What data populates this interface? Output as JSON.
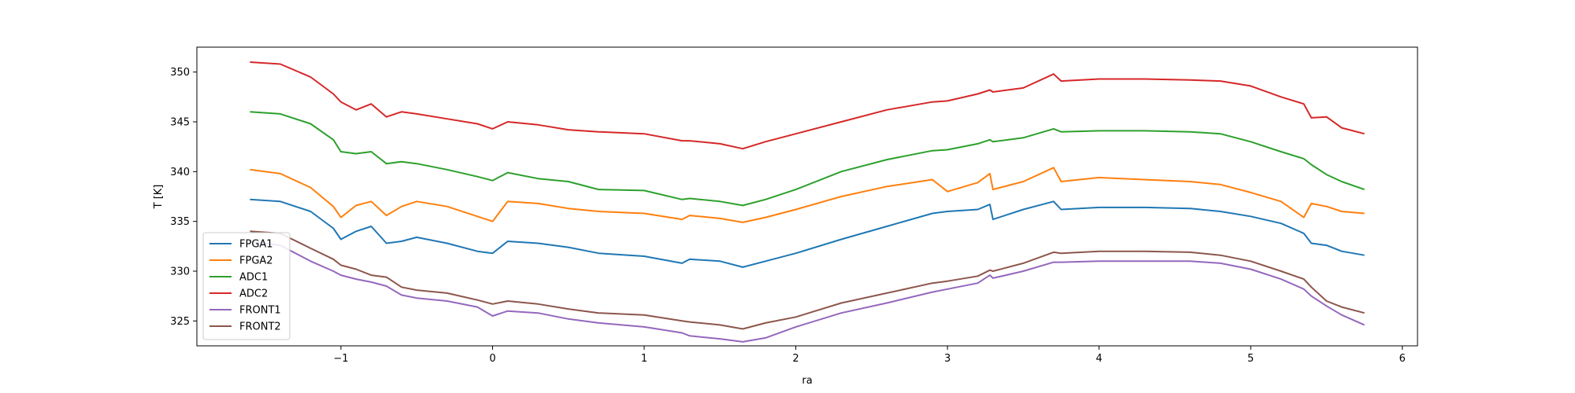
{
  "chart_data": {
    "type": "line",
    "title": "",
    "xlabel": "ra",
    "ylabel": "T [K]",
    "xlim": [
      -1.95,
      6.1
    ],
    "ylim": [
      322.5,
      352.5
    ],
    "xticks": [
      -1,
      0,
      1,
      2,
      3,
      4,
      5,
      6
    ],
    "xtick_labels": [
      "−1",
      "0",
      "1",
      "2",
      "3",
      "4",
      "5",
      "6"
    ],
    "yticks": [
      325,
      330,
      335,
      340,
      345,
      350
    ],
    "ytick_labels": [
      "325",
      "330",
      "335",
      "340",
      "345",
      "350"
    ],
    "grid": false,
    "legend_position": "lower-left",
    "series": [
      {
        "name": "FPGA1",
        "color": "#1f77b4",
        "x": [
          -1.6,
          -1.4,
          -1.2,
          -1.05,
          -1.0,
          -0.9,
          -0.8,
          -0.7,
          -0.6,
          -0.5,
          -0.3,
          -0.1,
          0.0,
          0.1,
          0.3,
          0.5,
          0.7,
          1.0,
          1.25,
          1.3,
          1.5,
          1.65,
          1.8,
          2.0,
          2.3,
          2.6,
          2.9,
          3.0,
          3.2,
          3.28,
          3.3,
          3.5,
          3.7,
          3.75,
          4.0,
          4.3,
          4.6,
          4.8,
          5.0,
          5.2,
          5.35,
          5.4,
          5.5,
          5.6,
          5.75
        ],
        "y": [
          337.2,
          337.0,
          336.0,
          334.3,
          333.2,
          334.0,
          334.5,
          332.8,
          333.0,
          333.4,
          332.8,
          332.0,
          331.8,
          333.0,
          332.8,
          332.4,
          331.8,
          331.5,
          330.8,
          331.2,
          331.0,
          330.4,
          331.0,
          331.8,
          333.2,
          334.5,
          335.8,
          336.0,
          336.2,
          336.7,
          335.2,
          336.2,
          337.0,
          336.2,
          336.4,
          336.4,
          336.3,
          336.0,
          335.5,
          334.8,
          333.8,
          332.8,
          332.6,
          332.0,
          331.6
        ]
      },
      {
        "name": "FPGA2",
        "color": "#ff7f0e",
        "x": [
          -1.6,
          -1.4,
          -1.2,
          -1.05,
          -1.0,
          -0.9,
          -0.8,
          -0.7,
          -0.6,
          -0.5,
          -0.3,
          -0.1,
          0.0,
          0.1,
          0.3,
          0.5,
          0.7,
          1.0,
          1.25,
          1.3,
          1.5,
          1.65,
          1.8,
          2.0,
          2.3,
          2.6,
          2.9,
          3.0,
          3.2,
          3.28,
          3.3,
          3.5,
          3.7,
          3.75,
          4.0,
          4.3,
          4.6,
          4.8,
          5.0,
          5.2,
          5.35,
          5.4,
          5.5,
          5.6,
          5.75
        ],
        "y": [
          340.2,
          339.8,
          338.4,
          336.5,
          335.4,
          336.6,
          337.0,
          335.6,
          336.5,
          337.0,
          336.5,
          335.5,
          335.0,
          337.0,
          336.8,
          336.3,
          336.0,
          335.8,
          335.2,
          335.6,
          335.3,
          334.9,
          335.4,
          336.2,
          337.5,
          338.5,
          339.2,
          338.0,
          338.9,
          339.8,
          338.2,
          339.0,
          340.4,
          339.0,
          339.4,
          339.2,
          339.0,
          338.7,
          337.9,
          337.0,
          335.4,
          336.8,
          336.5,
          336.0,
          335.8
        ]
      },
      {
        "name": "ADC1",
        "color": "#2ca02c",
        "x": [
          -1.6,
          -1.4,
          -1.2,
          -1.05,
          -1.0,
          -0.9,
          -0.8,
          -0.7,
          -0.6,
          -0.5,
          -0.3,
          -0.1,
          0.0,
          0.1,
          0.3,
          0.5,
          0.7,
          1.0,
          1.25,
          1.3,
          1.5,
          1.65,
          1.8,
          2.0,
          2.3,
          2.6,
          2.9,
          3.0,
          3.2,
          3.28,
          3.3,
          3.5,
          3.7,
          3.75,
          4.0,
          4.3,
          4.6,
          4.8,
          5.0,
          5.2,
          5.35,
          5.4,
          5.5,
          5.6,
          5.75
        ],
        "y": [
          346.0,
          345.8,
          344.8,
          343.2,
          342.0,
          341.8,
          342.0,
          340.8,
          341.0,
          340.8,
          340.2,
          339.5,
          339.1,
          339.9,
          339.3,
          339.0,
          338.2,
          338.1,
          337.2,
          337.3,
          337.0,
          336.6,
          337.2,
          338.2,
          340.0,
          341.2,
          342.1,
          342.2,
          342.8,
          343.2,
          343.0,
          343.4,
          344.3,
          344.0,
          344.1,
          344.1,
          344.0,
          343.8,
          343.0,
          342.0,
          341.3,
          340.7,
          339.7,
          339.0,
          338.2
        ]
      },
      {
        "name": "ADC2",
        "color": "#d62728",
        "x": [
          -1.6,
          -1.4,
          -1.2,
          -1.05,
          -1.0,
          -0.9,
          -0.8,
          -0.7,
          -0.6,
          -0.5,
          -0.3,
          -0.1,
          0.0,
          0.1,
          0.3,
          0.5,
          0.7,
          1.0,
          1.25,
          1.3,
          1.5,
          1.65,
          1.8,
          2.0,
          2.3,
          2.6,
          2.9,
          3.0,
          3.2,
          3.28,
          3.3,
          3.5,
          3.7,
          3.75,
          4.0,
          4.3,
          4.6,
          4.8,
          5.0,
          5.2,
          5.35,
          5.4,
          5.5,
          5.6,
          5.75
        ],
        "y": [
          351.0,
          350.8,
          349.5,
          347.8,
          347.0,
          346.2,
          346.8,
          345.5,
          346.0,
          345.8,
          345.3,
          344.8,
          344.3,
          345.0,
          344.7,
          344.2,
          344.0,
          343.8,
          343.1,
          343.1,
          342.8,
          342.3,
          343.0,
          343.8,
          345.0,
          346.2,
          347.0,
          347.1,
          347.8,
          348.2,
          348.0,
          348.4,
          349.8,
          349.1,
          349.3,
          349.3,
          349.2,
          349.1,
          348.6,
          347.5,
          346.8,
          345.4,
          345.5,
          344.4,
          343.8
        ]
      },
      {
        "name": "FRONT1",
        "color": "#9467bd",
        "x": [
          -1.6,
          -1.4,
          -1.2,
          -1.05,
          -1.0,
          -0.9,
          -0.8,
          -0.7,
          -0.6,
          -0.5,
          -0.3,
          -0.1,
          0.0,
          0.1,
          0.3,
          0.5,
          0.7,
          1.0,
          1.25,
          1.3,
          1.5,
          1.65,
          1.8,
          2.0,
          2.3,
          2.6,
          2.9,
          3.0,
          3.2,
          3.28,
          3.3,
          3.5,
          3.7,
          3.75,
          4.0,
          4.3,
          4.6,
          4.8,
          5.0,
          5.2,
          5.35,
          5.4,
          5.5,
          5.6,
          5.75
        ],
        "y": [
          333.0,
          332.6,
          331.0,
          330.0,
          329.6,
          329.2,
          328.9,
          328.5,
          327.6,
          327.3,
          327.0,
          326.4,
          325.5,
          326.0,
          325.8,
          325.2,
          324.8,
          324.4,
          323.8,
          323.5,
          323.2,
          322.9,
          323.3,
          324.4,
          325.8,
          326.8,
          327.9,
          328.2,
          328.8,
          329.6,
          329.3,
          330.0,
          330.9,
          330.9,
          331.0,
          331.0,
          331.0,
          330.8,
          330.2,
          329.2,
          328.2,
          327.5,
          326.5,
          325.6,
          324.6
        ]
      },
      {
        "name": "FRONT2",
        "color": "#8c564b",
        "x": [
          -1.6,
          -1.4,
          -1.2,
          -1.05,
          -1.0,
          -0.9,
          -0.8,
          -0.7,
          -0.6,
          -0.5,
          -0.3,
          -0.1,
          0.0,
          0.1,
          0.3,
          0.5,
          0.7,
          1.0,
          1.25,
          1.3,
          1.5,
          1.65,
          1.8,
          2.0,
          2.3,
          2.6,
          2.9,
          3.0,
          3.2,
          3.28,
          3.3,
          3.5,
          3.7,
          3.75,
          4.0,
          4.3,
          4.6,
          4.8,
          5.0,
          5.2,
          5.35,
          5.4,
          5.5,
          5.6,
          5.75
        ],
        "y": [
          334.0,
          333.8,
          332.3,
          331.2,
          330.6,
          330.2,
          329.6,
          329.4,
          328.4,
          328.1,
          327.8,
          327.1,
          326.7,
          327.0,
          326.7,
          326.2,
          325.8,
          325.6,
          325.0,
          324.9,
          324.6,
          324.2,
          324.8,
          325.4,
          326.8,
          327.8,
          328.8,
          329.0,
          329.5,
          330.1,
          330.0,
          330.8,
          331.9,
          331.8,
          332.0,
          332.0,
          331.9,
          331.6,
          331.0,
          330.0,
          329.2,
          328.4,
          327.0,
          326.4,
          325.8
        ]
      }
    ]
  }
}
